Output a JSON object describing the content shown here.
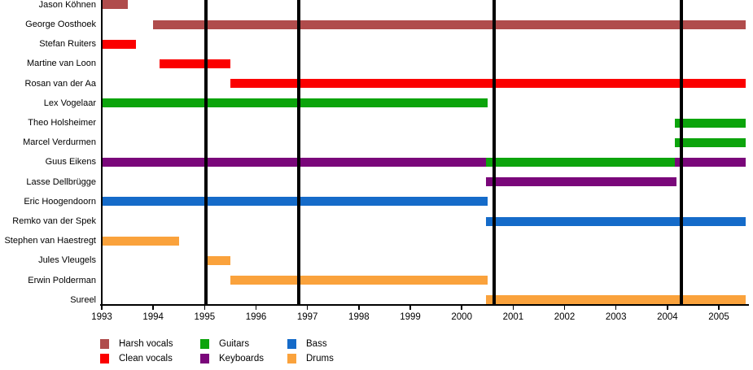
{
  "chart_data": {
    "type": "gantt-timeline",
    "description": "Band members timeline: horizontal bars show each member's tenure per instrument role; thick vertical black lines mark key dates (album releases).",
    "x_axis": {
      "start": 1993,
      "end": 2005.52,
      "tick_years": [
        1993,
        1994,
        1995,
        1996,
        1997,
        1998,
        1999,
        2000,
        2001,
        2002,
        2003,
        2004,
        2005
      ]
    },
    "event_lines": {
      "years": [
        1995.02,
        1996.83,
        2000.63,
        2004.27
      ]
    },
    "roles": [
      {
        "id": "harsh",
        "label": "Harsh vocals",
        "color": "#b04c4c"
      },
      {
        "id": "clean",
        "label": "Clean vocals",
        "color": "#fb0000"
      },
      {
        "id": "guitars",
        "label": "Guitars",
        "color": "#0ca40c"
      },
      {
        "id": "keyboards",
        "label": "Keyboards",
        "color": "#7a077a"
      },
      {
        "id": "bass",
        "label": "Bass",
        "color": "#156bc9"
      },
      {
        "id": "drums",
        "label": "Drums",
        "color": "#faa23c"
      }
    ],
    "members": [
      {
        "name": "Jason Köhnen",
        "segments": [
          {
            "role": "harsh",
            "from": 1993.0,
            "to": 1993.5
          }
        ]
      },
      {
        "name": "George Oosthoek",
        "segments": [
          {
            "role": "harsh",
            "from": 1994.0,
            "to": 2005.52
          }
        ]
      },
      {
        "name": "Stefan Ruiters",
        "segments": [
          {
            "role": "clean",
            "from": 1993.0,
            "to": 1993.67
          }
        ]
      },
      {
        "name": "Martine van Loon",
        "segments": [
          {
            "role": "clean",
            "from": 1994.13,
            "to": 1995.5
          }
        ]
      },
      {
        "name": "Rosan van der Aa",
        "segments": [
          {
            "role": "clean",
            "from": 1995.5,
            "to": 2005.52
          }
        ]
      },
      {
        "name": "Lex Vogelaar",
        "segments": [
          {
            "role": "guitars",
            "from": 1993.0,
            "to": 2000.5
          }
        ]
      },
      {
        "name": "Theo Holsheimer",
        "segments": [
          {
            "role": "guitars",
            "from": 2004.15,
            "to": 2005.52
          }
        ]
      },
      {
        "name": "Marcel Verdurmen",
        "segments": [
          {
            "role": "guitars",
            "from": 2004.15,
            "to": 2005.52
          }
        ]
      },
      {
        "name": "Guus Eikens",
        "segments": [
          {
            "role": "keyboards",
            "from": 1993.0,
            "to": 2000.47
          },
          {
            "role": "guitars",
            "from": 2000.47,
            "to": 2004.15
          },
          {
            "role": "keyboards",
            "from": 2004.15,
            "to": 2005.52
          }
        ]
      },
      {
        "name": "Lasse Dellbrügge",
        "segments": [
          {
            "role": "keyboards",
            "from": 2000.47,
            "to": 2004.17
          }
        ]
      },
      {
        "name": "Eric Hoogendoorn",
        "segments": [
          {
            "role": "bass",
            "from": 1993.0,
            "to": 2000.5
          }
        ]
      },
      {
        "name": "Remko van der Spek",
        "segments": [
          {
            "role": "bass",
            "from": 2000.47,
            "to": 2005.52
          }
        ]
      },
      {
        "name": "Stephen van Haestregt",
        "segments": [
          {
            "role": "drums",
            "from": 1993.0,
            "to": 1994.5
          }
        ]
      },
      {
        "name": "Jules Vleugels",
        "segments": [
          {
            "role": "drums",
            "from": 1995.0,
            "to": 1995.5
          }
        ]
      },
      {
        "name": "Erwin Polderman",
        "segments": [
          {
            "role": "drums",
            "from": 1995.5,
            "to": 2000.5
          }
        ]
      },
      {
        "name": "Sureel",
        "segments": [
          {
            "role": "drums",
            "from": 2000.47,
            "to": 2005.52
          }
        ]
      }
    ],
    "legend": {
      "columns": [
        [
          "harsh",
          "clean"
        ],
        [
          "guitars",
          "keyboards"
        ],
        [
          "bass",
          "drums"
        ]
      ]
    }
  }
}
